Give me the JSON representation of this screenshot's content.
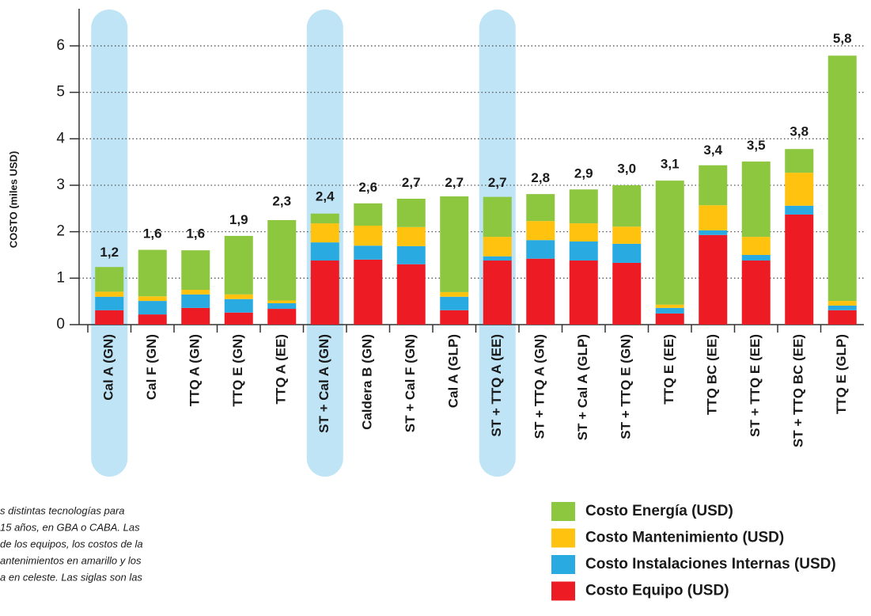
{
  "chart_data": {
    "type": "stacked_bar",
    "ylabel": "COSTO (miles USD)",
    "categories": [
      "Cal A (GN)",
      "Cal F (GN)",
      "TTQ A (GN)",
      "TTQ E (GN)",
      "TTQ A (EE)",
      "ST + Cal A (GN)",
      "Caldera B (GN)",
      "ST + Cal F (GN)",
      "Cal A (GLP)",
      "ST + TTQ A (EE)",
      "ST + TTQ A (GN)",
      "ST + Cal A (GLP)",
      "ST + TTQ E (GN)",
      "TTQ E (EE)",
      "TTQ BC (EE)",
      "ST + TTQ E (EE)",
      "ST + TTQ BC (EE)",
      "TTQ E (GLP)"
    ],
    "series": [
      {
        "name": "Costo Equipo (USD)",
        "color": "#ed1c24",
        "values": [
          0.31,
          0.22,
          0.36,
          0.26,
          0.34,
          1.38,
          1.4,
          1.3,
          0.31,
          1.38,
          1.42,
          1.38,
          1.33,
          0.24,
          1.93,
          1.38,
          2.37,
          0.31
        ]
      },
      {
        "name": "Costo Instalaciones Internas (USD)",
        "color": "#29abe2",
        "values": [
          0.29,
          0.29,
          0.29,
          0.29,
          0.12,
          0.39,
          0.3,
          0.39,
          0.29,
          0.09,
          0.4,
          0.41,
          0.41,
          0.12,
          0.1,
          0.12,
          0.19,
          0.1
        ]
      },
      {
        "name": "Costo Mantenimiento (USD)",
        "color": "#ffc20e",
        "values": [
          0.11,
          0.1,
          0.1,
          0.1,
          0.06,
          0.41,
          0.43,
          0.41,
          0.1,
          0.42,
          0.41,
          0.39,
          0.37,
          0.07,
          0.54,
          0.39,
          0.71,
          0.1
        ]
      },
      {
        "name": "Costo Energía (USD)",
        "color": "#8dc63f",
        "values": [
          0.53,
          1.0,
          0.85,
          1.26,
          1.73,
          0.21,
          0.48,
          0.61,
          2.06,
          0.86,
          0.58,
          0.73,
          0.89,
          2.67,
          0.86,
          1.62,
          0.51,
          5.28
        ]
      }
    ],
    "totals": {
      "values": [
        1.2,
        1.6,
        1.6,
        1.9,
        2.3,
        2.4,
        2.6,
        2.7,
        2.7,
        2.7,
        2.8,
        2.9,
        3.0,
        3.1,
        3.4,
        3.5,
        3.8,
        5.8
      ],
      "value_labels": [
        "1,2",
        "1,6",
        "1,6",
        "1,9",
        "2,3",
        "2,4",
        "2,6",
        "2,7",
        "2,7",
        "2,7",
        "2,8",
        "2,9",
        "3,0",
        "3,1",
        "3,4",
        "3,5",
        "3,8",
        "5,8"
      ]
    },
    "highlight": [
      0,
      5,
      9
    ],
    "highlight_color": "#bfe4f6",
    "ylim": [
      0,
      6.8
    ],
    "yticks": [
      0,
      1,
      2,
      3,
      4,
      5,
      6
    ],
    "grid": true,
    "caption": [
      "s distintas tecnologías para",
      "15 años, en GBA o CABA. Las",
      " de los equipos, los costos de la",
      "antenimientos en amarillo y los",
      "a en celeste. Las siglas son las"
    ]
  }
}
